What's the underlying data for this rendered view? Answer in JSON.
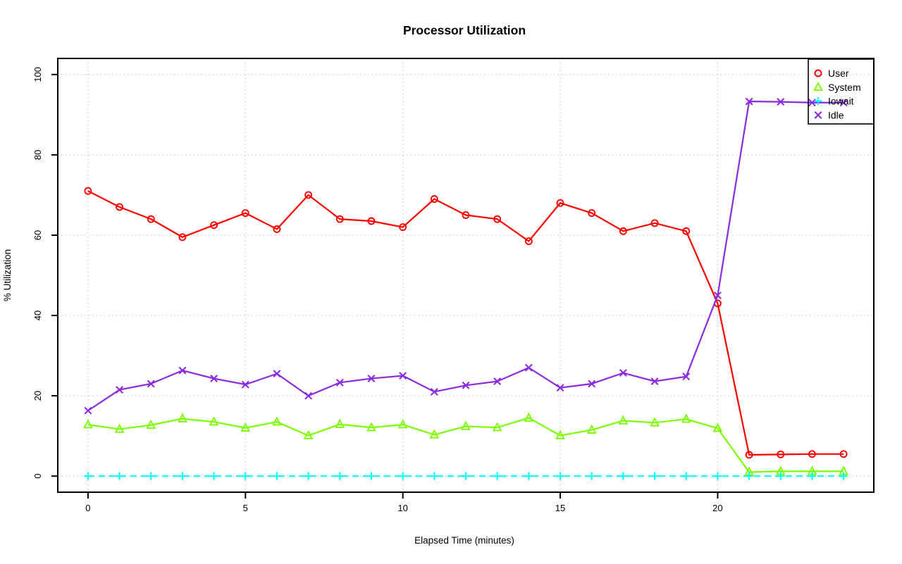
{
  "chart_data": {
    "type": "line",
    "title": "Processor Utilization",
    "xlabel": "Elapsed Time (minutes)",
    "ylabel": "% Utilization",
    "x": [
      0,
      1,
      2,
      3,
      4,
      5,
      6,
      7,
      8,
      9,
      10,
      11,
      12,
      13,
      14,
      15,
      16,
      17,
      18,
      19,
      20,
      21,
      22,
      23,
      24
    ],
    "xticks": [
      0,
      5,
      10,
      15,
      20
    ],
    "yticks": [
      0,
      20,
      40,
      60,
      80,
      100
    ],
    "xlim": [
      -0.96,
      24.96
    ],
    "ylim": [
      -4,
      104
    ],
    "grid": true,
    "legend_position": "top-right",
    "series": [
      {
        "name": "User",
        "color": "#FF0000",
        "marker": "circle-marker",
        "line_style": "solid",
        "values": [
          71,
          67,
          64,
          59.5,
          62.5,
          65.5,
          61.5,
          70,
          64,
          63.5,
          62,
          69,
          65,
          64,
          58.5,
          68,
          65.5,
          61,
          63,
          61,
          43,
          5.3,
          5.4,
          5.5,
          5.5
        ]
      },
      {
        "name": "System",
        "color": "#7CFC00",
        "marker": "triangle-marker",
        "line_style": "solid",
        "values": [
          12.8,
          11.7,
          12.7,
          14.3,
          13.5,
          12,
          13.5,
          10.1,
          12.9,
          12.1,
          12.8,
          10.3,
          12.4,
          12.1,
          14.5,
          10.1,
          11.5,
          13.8,
          13.3,
          14.2,
          11.9,
          1,
          1.2,
          1.2,
          1.2
        ]
      },
      {
        "name": "Iowait",
        "color": "#00FFFF",
        "marker": "plus-marker",
        "line_style": "dashed",
        "values": [
          0,
          0,
          0,
          0,
          0,
          0,
          0,
          0,
          0,
          0,
          0,
          0,
          0,
          0,
          0,
          0,
          0,
          0,
          0,
          0,
          0,
          0,
          0,
          0,
          0
        ]
      },
      {
        "name": "Idle",
        "color": "#8A2BE2",
        "marker": "x-marker",
        "line_style": "solid",
        "values": [
          16.3,
          21.5,
          23,
          26.3,
          24.3,
          22.8,
          25.5,
          20,
          23.3,
          24.3,
          25,
          21,
          22.6,
          23.6,
          27,
          22,
          23,
          25.7,
          23.6,
          24.8,
          45,
          93.3,
          93.2,
          93,
          93
        ]
      }
    ]
  }
}
